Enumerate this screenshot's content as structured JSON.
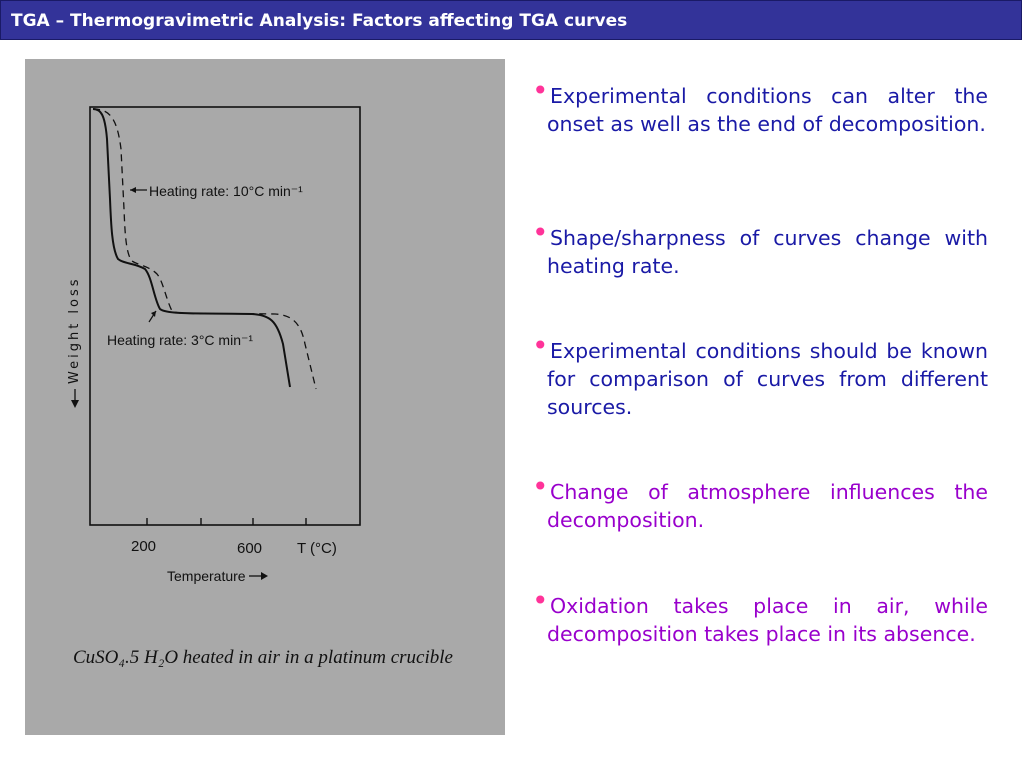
{
  "header": {
    "title": "TGA – Thermogravimetric Analysis: Factors affecting TGA curves"
  },
  "figure": {
    "ylabel": "Weight loss",
    "xlabel": "Temperature",
    "x_ticks": [
      "200",
      "600",
      "T (°C)"
    ],
    "label_fast": "Heating rate: 10°C min⁻¹",
    "label_slow": "Heating rate: 3°C min⁻¹",
    "caption": "CuSO₄.5 H₂O heated in air in a platinum crucible"
  },
  "bullets": [
    {
      "text": "Experimental conditions can alter the onset  as well as  the end of decomposition.",
      "color": "#1a1aa6"
    },
    {
      "text": "Shape/sharpness of curves  change with heating rate.",
      "color": "#1a1aa6"
    },
    {
      "text": "Experimental conditions  should be known for comparison of curves from different sources.",
      "color": "#1a1aa6"
    },
    {
      "text": "Change of atmosphere influences the decomposition.",
      "color": "#9900cc"
    },
    {
      "text": "Oxidation takes place in air, while decomposition takes place in its absence.",
      "color": "#9900cc"
    }
  ],
  "colors": {
    "title_bg": "#333399",
    "bullet_dot": "#ff3399"
  }
}
